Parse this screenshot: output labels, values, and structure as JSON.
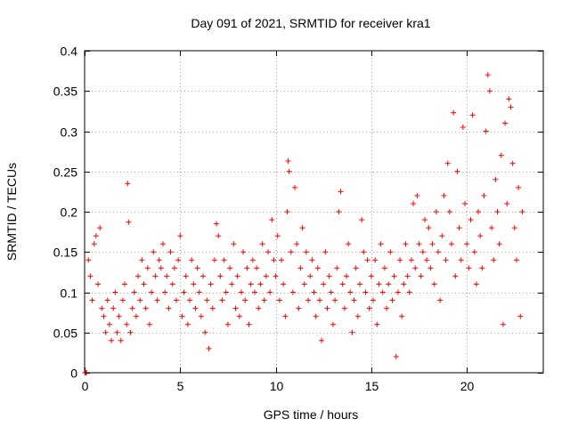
{
  "chart_data": {
    "type": "scatter",
    "title": "Day 091 of 2021, SRMTID for receiver kra1",
    "xlabel": "GPS time / hours",
    "ylabel": "SRMTID / TECUs",
    "xlim": [
      0,
      24
    ],
    "ylim": [
      0,
      0.4
    ],
    "xticks": [
      0,
      5,
      10,
      15,
      20
    ],
    "xtick_labels": [
      "0",
      "5",
      "10",
      "15",
      "20"
    ],
    "yticks": [
      0,
      0.05,
      0.1,
      0.15,
      0.2,
      0.25,
      0.3,
      0.35,
      0.4
    ],
    "ytick_labels": [
      "0",
      "0.05",
      "0.1",
      "0.15",
      "0.2",
      "0.25",
      "0.3",
      "0.35",
      "0.4"
    ],
    "grid": true,
    "marker": "+",
    "marker_color": "#ff0000",
    "series": [
      {
        "name": "SRMTID",
        "points": [
          [
            0.02,
            0.0
          ],
          [
            0.05,
            0.0
          ],
          [
            0.1,
            0.0
          ],
          [
            0.2,
            0.14
          ],
          [
            0.3,
            0.12
          ],
          [
            0.4,
            0.09
          ],
          [
            0.5,
            0.16
          ],
          [
            0.6,
            0.17
          ],
          [
            0.7,
            0.11
          ],
          [
            0.8,
            0.18
          ],
          [
            0.9,
            0.08
          ],
          [
            1.0,
            0.07
          ],
          [
            1.1,
            0.05
          ],
          [
            1.2,
            0.09
          ],
          [
            1.3,
            0.06
          ],
          [
            1.4,
            0.04
          ],
          [
            1.5,
            0.08
          ],
          [
            1.6,
            0.1
          ],
          [
            1.7,
            0.05
          ],
          [
            1.8,
            0.07
          ],
          [
            1.9,
            0.04
          ],
          [
            2.0,
            0.09
          ],
          [
            2.1,
            0.11
          ],
          [
            2.2,
            0.06
          ],
          [
            2.25,
            0.235
          ],
          [
            2.3,
            0.187
          ],
          [
            2.4,
            0.05
          ],
          [
            2.5,
            0.08
          ],
          [
            2.6,
            0.1
          ],
          [
            2.7,
            0.07
          ],
          [
            2.8,
            0.12
          ],
          [
            2.9,
            0.09
          ],
          [
            3.0,
            0.14
          ],
          [
            3.1,
            0.11
          ],
          [
            3.2,
            0.08
          ],
          [
            3.3,
            0.13
          ],
          [
            3.4,
            0.06
          ],
          [
            3.5,
            0.1
          ],
          [
            3.6,
            0.15
          ],
          [
            3.7,
            0.12
          ],
          [
            3.8,
            0.09
          ],
          [
            3.9,
            0.14
          ],
          [
            4.0,
            0.13
          ],
          [
            4.1,
            0.16
          ],
          [
            4.2,
            0.1
          ],
          [
            4.3,
            0.12
          ],
          [
            4.4,
            0.08
          ],
          [
            4.5,
            0.15
          ],
          [
            4.6,
            0.11
          ],
          [
            4.7,
            0.13
          ],
          [
            4.8,
            0.09
          ],
          [
            4.9,
            0.14
          ],
          [
            5.0,
            0.17
          ],
          [
            5.1,
            0.07
          ],
          [
            5.2,
            0.1
          ],
          [
            5.3,
            0.12
          ],
          [
            5.4,
            0.06
          ],
          [
            5.5,
            0.09
          ],
          [
            5.6,
            0.14
          ],
          [
            5.7,
            0.11
          ],
          [
            5.8,
            0.08
          ],
          [
            5.9,
            0.13
          ],
          [
            6.0,
            0.1
          ],
          [
            6.1,
            0.07
          ],
          [
            6.2,
            0.12
          ],
          [
            6.3,
            0.05
          ],
          [
            6.4,
            0.09
          ],
          [
            6.5,
            0.03
          ],
          [
            6.6,
            0.11
          ],
          [
            6.7,
            0.08
          ],
          [
            6.8,
            0.14
          ],
          [
            6.9,
            0.185
          ],
          [
            7.0,
            0.17
          ],
          [
            7.1,
            0.12
          ],
          [
            7.2,
            0.09
          ],
          [
            7.3,
            0.14
          ],
          [
            7.4,
            0.1
          ],
          [
            7.5,
            0.06
          ],
          [
            7.6,
            0.13
          ],
          [
            7.7,
            0.11
          ],
          [
            7.8,
            0.16
          ],
          [
            7.9,
            0.08
          ],
          [
            8.0,
            0.12
          ],
          [
            8.1,
            0.07
          ],
          [
            8.2,
            0.1
          ],
          [
            8.3,
            0.15
          ],
          [
            8.4,
            0.09
          ],
          [
            8.5,
            0.13
          ],
          [
            8.6,
            0.06
          ],
          [
            8.7,
            0.11
          ],
          [
            8.8,
            0.14
          ],
          [
            8.9,
            0.1
          ],
          [
            9.0,
            0.13
          ],
          [
            9.1,
            0.08
          ],
          [
            9.2,
            0.11
          ],
          [
            9.3,
            0.16
          ],
          [
            9.4,
            0.09
          ],
          [
            9.5,
            0.12
          ],
          [
            9.6,
            0.15
          ],
          [
            9.7,
            0.1
          ],
          [
            9.8,
            0.19
          ],
          [
            9.9,
            0.14
          ],
          [
            10.0,
            0.12
          ],
          [
            10.1,
            0.17
          ],
          [
            10.2,
            0.09
          ],
          [
            10.3,
            0.14
          ],
          [
            10.4,
            0.11
          ],
          [
            10.5,
            0.07
          ],
          [
            10.6,
            0.2
          ],
          [
            10.65,
            0.263
          ],
          [
            10.7,
            0.25
          ],
          [
            10.8,
            0.15
          ],
          [
            10.9,
            0.1
          ],
          [
            11.0,
            0.23
          ],
          [
            11.1,
            0.16
          ],
          [
            11.2,
            0.08
          ],
          [
            11.3,
            0.13
          ],
          [
            11.4,
            0.18
          ],
          [
            11.5,
            0.11
          ],
          [
            11.6,
            0.15
          ],
          [
            11.7,
            0.09
          ],
          [
            11.8,
            0.12
          ],
          [
            11.9,
            0.14
          ],
          [
            12.0,
            0.1
          ],
          [
            12.1,
            0.07
          ],
          [
            12.2,
            0.13
          ],
          [
            12.3,
            0.09
          ],
          [
            12.4,
            0.04
          ],
          [
            12.5,
            0.11
          ],
          [
            12.6,
            0.15
          ],
          [
            12.7,
            0.08
          ],
          [
            12.8,
            0.12
          ],
          [
            12.9,
            0.1
          ],
          [
            13.0,
            0.06
          ],
          [
            13.1,
            0.09
          ],
          [
            13.2,
            0.13
          ],
          [
            13.3,
            0.2
          ],
          [
            13.4,
            0.225
          ],
          [
            13.5,
            0.11
          ],
          [
            13.6,
            0.08
          ],
          [
            13.7,
            0.12
          ],
          [
            13.8,
            0.16
          ],
          [
            13.9,
            0.1
          ],
          [
            14.0,
            0.05
          ],
          [
            14.1,
            0.09
          ],
          [
            14.2,
            0.13
          ],
          [
            14.3,
            0.07
          ],
          [
            14.4,
            0.11
          ],
          [
            14.5,
            0.19
          ],
          [
            14.6,
            0.15
          ],
          [
            14.7,
            0.1
          ],
          [
            14.8,
            0.14
          ],
          [
            14.9,
            0.08
          ],
          [
            15.0,
            0.12
          ],
          [
            15.1,
            0.09
          ],
          [
            15.2,
            0.14
          ],
          [
            15.3,
            0.06
          ],
          [
            15.4,
            0.11
          ],
          [
            15.5,
            0.16
          ],
          [
            15.6,
            0.1
          ],
          [
            15.7,
            0.13
          ],
          [
            15.8,
            0.08
          ],
          [
            15.9,
            0.11
          ],
          [
            16.0,
            0.15
          ],
          [
            16.1,
            0.09
          ],
          [
            16.2,
            0.12
          ],
          [
            16.3,
            0.02
          ],
          [
            16.4,
            0.1
          ],
          [
            16.5,
            0.14
          ],
          [
            16.6,
            0.07
          ],
          [
            16.7,
            0.11
          ],
          [
            16.8,
            0.16
          ],
          [
            16.9,
            0.12
          ],
          [
            17.0,
            0.1
          ],
          [
            17.1,
            0.14
          ],
          [
            17.2,
            0.21
          ],
          [
            17.3,
            0.13
          ],
          [
            17.4,
            0.22
          ],
          [
            17.5,
            0.16
          ],
          [
            17.6,
            0.12
          ],
          [
            17.7,
            0.15
          ],
          [
            17.8,
            0.19
          ],
          [
            17.9,
            0.14
          ],
          [
            18.0,
            0.18
          ],
          [
            18.1,
            0.13
          ],
          [
            18.2,
            0.16
          ],
          [
            18.3,
            0.11
          ],
          [
            18.4,
            0.2
          ],
          [
            18.5,
            0.15
          ],
          [
            18.6,
            0.09
          ],
          [
            18.7,
            0.17
          ],
          [
            18.8,
            0.22
          ],
          [
            18.9,
            0.14
          ],
          [
            19.0,
            0.26
          ],
          [
            19.1,
            0.2
          ],
          [
            19.2,
            0.16
          ],
          [
            19.3,
            0.323
          ],
          [
            19.4,
            0.12
          ],
          [
            19.5,
            0.25
          ],
          [
            19.6,
            0.18
          ],
          [
            19.7,
            0.14
          ],
          [
            19.8,
            0.305
          ],
          [
            19.9,
            0.21
          ],
          [
            20.0,
            0.16
          ],
          [
            20.1,
            0.13
          ],
          [
            20.2,
            0.19
          ],
          [
            20.3,
            0.32
          ],
          [
            20.4,
            0.15
          ],
          [
            20.5,
            0.11
          ],
          [
            20.6,
            0.2
          ],
          [
            20.7,
            0.17
          ],
          [
            20.8,
            0.13
          ],
          [
            20.9,
            0.22
          ],
          [
            21.0,
            0.3
          ],
          [
            21.1,
            0.37
          ],
          [
            21.2,
            0.35
          ],
          [
            21.3,
            0.18
          ],
          [
            21.4,
            0.14
          ],
          [
            21.5,
            0.24
          ],
          [
            21.6,
            0.2
          ],
          [
            21.7,
            0.16
          ],
          [
            21.8,
            0.27
          ],
          [
            21.9,
            0.06
          ],
          [
            22.0,
            0.31
          ],
          [
            22.1,
            0.21
          ],
          [
            22.2,
            0.34
          ],
          [
            22.3,
            0.33
          ],
          [
            22.4,
            0.26
          ],
          [
            22.5,
            0.18
          ],
          [
            22.6,
            0.14
          ],
          [
            22.7,
            0.23
          ],
          [
            22.8,
            0.07
          ],
          [
            22.9,
            0.2
          ]
        ]
      }
    ]
  }
}
